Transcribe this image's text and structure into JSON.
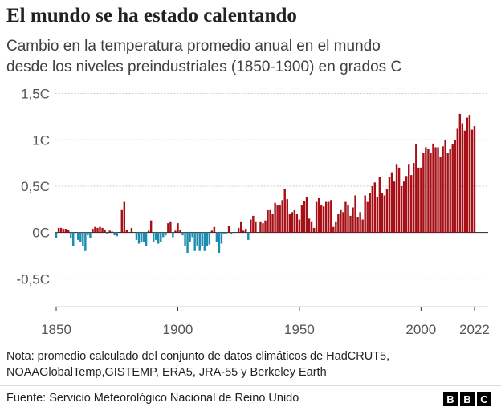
{
  "chart_data": {
    "type": "bar",
    "title": "El mundo se ha estado calentando",
    "subtitle": [
      "Cambio en la temperatura promedio anual en el mundo",
      "desde los niveles preindustriales (1850-1900) en grados C"
    ],
    "note": [
      "Nota: promedio calculado del conjunto de datos climáticos de HadCRUT5,",
      "NOAAGlobalTemp,GISTEMP, ERA5, JRA-55 y Berkeley Earth"
    ],
    "source": "Fuente: Servicio Meteorológico Nacional de Reino Unido",
    "logo": [
      "B",
      "B",
      "C"
    ],
    "positive_color": "#a50f15",
    "negative_color": "#1b8bb0",
    "grid": true,
    "xlim": [
      1849.5,
      2022.5
    ],
    "xticks": [
      1850,
      1900,
      1950,
      2000,
      2022
    ],
    "ylim": [
      -0.8,
      1.6
    ],
    "yticks": [
      {
        "value": 1.5,
        "label": "1,5C"
      },
      {
        "value": 1,
        "label": "1C"
      },
      {
        "value": 0.5,
        "label": "0,5C"
      },
      {
        "value": 0,
        "label": "0C"
      },
      {
        "value": -0.5,
        "label": "-0,5C"
      }
    ],
    "x": [
      1850,
      1851,
      1852,
      1853,
      1854,
      1855,
      1856,
      1857,
      1858,
      1859,
      1860,
      1861,
      1862,
      1863,
      1864,
      1865,
      1866,
      1867,
      1868,
      1869,
      1870,
      1871,
      1872,
      1873,
      1874,
      1875,
      1876,
      1877,
      1878,
      1879,
      1880,
      1881,
      1882,
      1883,
      1884,
      1885,
      1886,
      1887,
      1888,
      1889,
      1890,
      1891,
      1892,
      1893,
      1894,
      1895,
      1896,
      1897,
      1898,
      1899,
      1900,
      1901,
      1902,
      1903,
      1904,
      1905,
      1906,
      1907,
      1908,
      1909,
      1910,
      1911,
      1912,
      1913,
      1914,
      1915,
      1916,
      1917,
      1918,
      1919,
      1920,
      1921,
      1922,
      1923,
      1924,
      1925,
      1926,
      1927,
      1928,
      1929,
      1930,
      1931,
      1932,
      1933,
      1934,
      1935,
      1936,
      1937,
      1938,
      1939,
      1940,
      1941,
      1942,
      1943,
      1944,
      1945,
      1946,
      1947,
      1948,
      1949,
      1950,
      1951,
      1952,
      1953,
      1954,
      1955,
      1956,
      1957,
      1958,
      1959,
      1960,
      1961,
      1962,
      1963,
      1964,
      1965,
      1966,
      1967,
      1968,
      1969,
      1970,
      1971,
      1972,
      1973,
      1974,
      1975,
      1976,
      1977,
      1978,
      1979,
      1980,
      1981,
      1982,
      1983,
      1984,
      1985,
      1986,
      1987,
      1988,
      1989,
      1990,
      1991,
      1992,
      1993,
      1994,
      1995,
      1996,
      1997,
      1998,
      1999,
      2000,
      2001,
      2002,
      2003,
      2004,
      2005,
      2006,
      2007,
      2008,
      2009,
      2010,
      2011,
      2012,
      2013,
      2014,
      2015,
      2016,
      2017,
      2018,
      2019,
      2020,
      2021,
      2022
    ],
    "values": [
      -0.06,
      0.05,
      0.05,
      0.04,
      0.04,
      0.03,
      -0.06,
      -0.15,
      0.0,
      -0.08,
      -0.1,
      -0.15,
      -0.2,
      -0.03,
      -0.06,
      0.04,
      0.06,
      0.05,
      0.06,
      0.05,
      0.03,
      -0.02,
      0.02,
      0.01,
      -0.03,
      -0.04,
      0.0,
      0.25,
      0.33,
      0.03,
      0.0,
      0.05,
      0.0,
      -0.08,
      -0.12,
      -0.1,
      -0.1,
      -0.15,
      0.02,
      0.13,
      -0.1,
      -0.08,
      -0.12,
      -0.1,
      -0.05,
      -0.03,
      0.1,
      0.12,
      -0.05,
      0.02,
      0.1,
      0.03,
      -0.03,
      -0.15,
      -0.22,
      -0.1,
      -0.05,
      -0.2,
      -0.15,
      -0.2,
      -0.15,
      -0.2,
      -0.15,
      -0.13,
      0.02,
      0.06,
      -0.1,
      -0.22,
      -0.12,
      -0.02,
      -0.01,
      0.07,
      -0.02,
      0.0,
      0.0,
      0.05,
      0.12,
      0.02,
      0.04,
      -0.08,
      0.14,
      0.18,
      0.12,
      0.0,
      0.12,
      0.1,
      0.13,
      0.24,
      0.25,
      0.2,
      0.32,
      0.3,
      0.3,
      0.35,
      0.47,
      0.36,
      0.2,
      0.22,
      0.24,
      0.2,
      0.14,
      0.3,
      0.34,
      0.38,
      0.15,
      0.12,
      0.05,
      0.33,
      0.37,
      0.3,
      0.28,
      0.33,
      0.33,
      0.35,
      0.06,
      0.12,
      0.2,
      0.25,
      0.22,
      0.33,
      0.3,
      0.18,
      0.27,
      0.4,
      0.17,
      0.22,
      0.14,
      0.4,
      0.33,
      0.43,
      0.5,
      0.54,
      0.38,
      0.6,
      0.43,
      0.4,
      0.47,
      0.6,
      0.65,
      0.55,
      0.74,
      0.7,
      0.5,
      0.55,
      0.61,
      0.74,
      0.62,
      0.75,
      0.95,
      0.7,
      0.7,
      0.86,
      0.92,
      0.9,
      0.86,
      0.96,
      0.92,
      0.92,
      0.82,
      0.93,
      1.0,
      0.86,
      0.9,
      0.95,
      1.0,
      1.12,
      1.28,
      1.18,
      1.1,
      1.24,
      1.27,
      1.11,
      1.15
    ]
  }
}
